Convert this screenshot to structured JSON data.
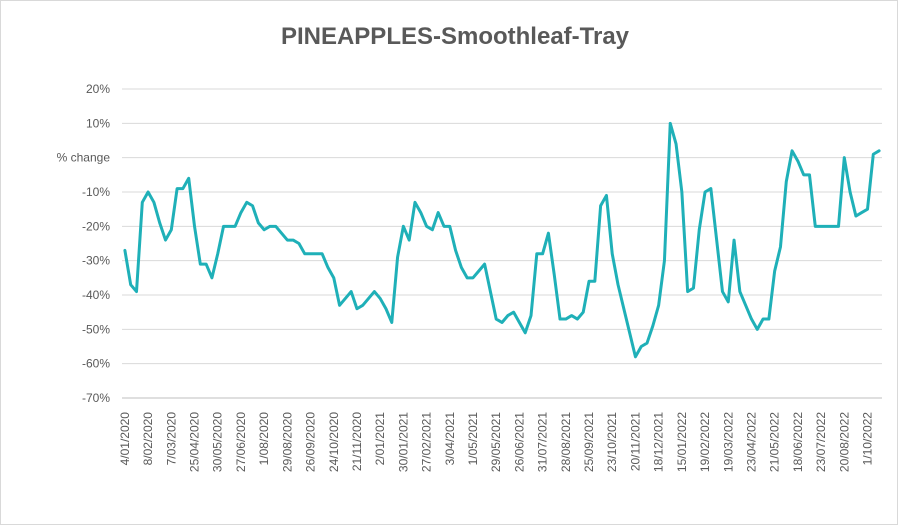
{
  "chart_data": {
    "type": "line",
    "title": "PINEAPPLES-Smoothleaf-Tray",
    "categories": [
      "4/01/2020",
      null,
      null,
      null,
      "8/02/2020",
      null,
      null,
      null,
      "7/03/2020",
      null,
      null,
      null,
      "25/04/2020",
      null,
      null,
      null,
      "30/05/2020",
      null,
      null,
      null,
      "27/06/2020",
      null,
      null,
      null,
      "1/08/2020",
      null,
      null,
      null,
      "29/08/2020",
      null,
      null,
      null,
      "26/09/2020",
      null,
      null,
      null,
      "24/10/2020",
      null,
      null,
      null,
      "21/11/2020",
      null,
      null,
      null,
      "2/01/2021",
      null,
      null,
      null,
      "30/01/2021",
      null,
      null,
      null,
      "27/02/2021",
      null,
      null,
      null,
      "3/04/2021",
      null,
      null,
      null,
      "1/05/2021",
      null,
      null,
      null,
      "29/05/2021",
      null,
      null,
      null,
      "26/06/2021",
      null,
      null,
      null,
      "31/07/2021",
      null,
      null,
      null,
      "28/08/2021",
      null,
      null,
      null,
      "25/09/2021",
      null,
      null,
      null,
      "23/10/2021",
      null,
      null,
      null,
      "20/11/2021",
      null,
      null,
      null,
      "18/12/2021",
      null,
      null,
      null,
      "15/01/2022",
      null,
      null,
      null,
      "19/02/2022",
      null,
      null,
      null,
      "19/03/2022",
      null,
      null,
      null,
      "23/04/2022",
      null,
      null,
      null,
      "21/05/2022",
      null,
      null,
      null,
      "18/06/2022",
      null,
      null,
      null,
      "23/07/2022",
      null,
      null,
      null,
      "20/08/2022",
      null,
      null,
      null,
      "1/10/2022",
      null,
      null
    ],
    "series": [
      {
        "color": "#1fb0b8",
        "values": [
          -27,
          -37,
          -39,
          -13,
          -10,
          -13,
          -19,
          -24,
          -21,
          -9,
          -9,
          -6,
          -20,
          -31,
          -31,
          -35,
          -28,
          -20,
          -20,
          -20,
          -16,
          -13,
          -14,
          -19,
          -21,
          -20,
          -20,
          -22,
          -24,
          -24,
          -25,
          -28,
          -28,
          -28,
          -28,
          -32,
          -35,
          -43,
          -41,
          -39,
          -44,
          -43,
          -41,
          -39,
          -41,
          -44,
          -48,
          -29,
          -20,
          -24,
          -13,
          -16,
          -20,
          -21,
          -16,
          -20,
          -20,
          -27,
          -32,
          -35,
          -35,
          -33,
          -31,
          -39,
          -47,
          -48,
          -46,
          -45,
          -48,
          -51,
          -46,
          -28,
          -28,
          -22,
          -34,
          -47,
          -47,
          -46,
          -47,
          -45,
          -36,
          -36,
          -14,
          -11,
          -28,
          -37,
          -44,
          -51,
          -58,
          -55,
          -54,
          -49,
          -43,
          -30,
          10,
          4,
          -10,
          -39,
          -38,
          -21,
          -10,
          -9,
          -24,
          -39,
          -42,
          -24,
          -39,
          -43,
          -47,
          -50,
          -47,
          -47,
          -33,
          -26,
          -7,
          2,
          -1,
          -5,
          -5,
          -20,
          -20,
          -20,
          -20,
          -20,
          0,
          -10,
          -17,
          -16,
          -15,
          1,
          2
        ]
      }
    ],
    "ylim": [
      -70,
      20
    ],
    "yticks": [
      {
        "value": -70,
        "label": "-70%"
      },
      {
        "value": -60,
        "label": "-60%"
      },
      {
        "value": -50,
        "label": "-50%"
      },
      {
        "value": -40,
        "label": "-40%"
      },
      {
        "value": -30,
        "label": "-30%"
      },
      {
        "value": -20,
        "label": "-20%"
      },
      {
        "value": -10,
        "label": "-10%"
      },
      {
        "value": 0,
        "label": "% change"
      },
      {
        "value": 10,
        "label": "10%"
      },
      {
        "value": 20,
        "label": "20%"
      }
    ],
    "grid": true
  }
}
